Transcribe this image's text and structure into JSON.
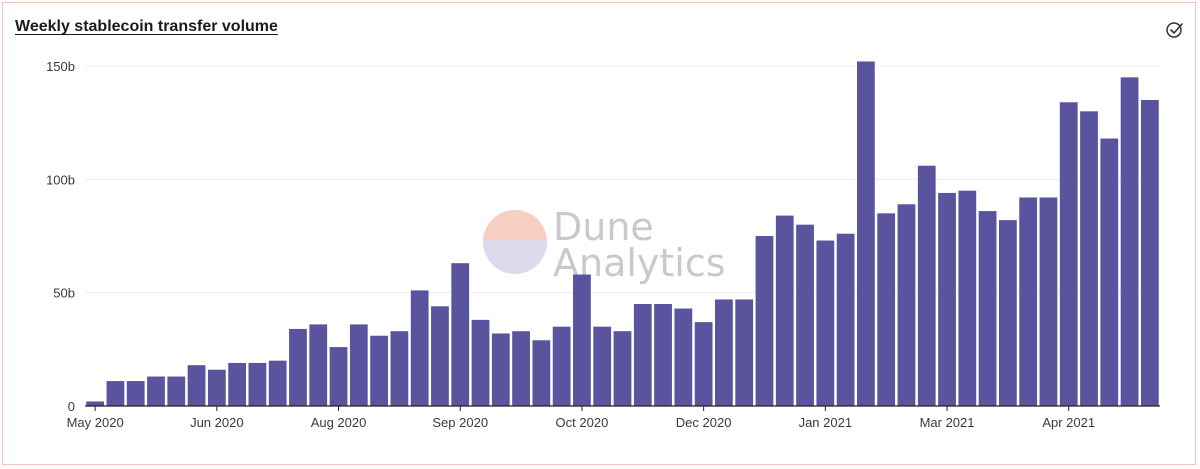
{
  "card": {
    "title": "Weekly stablecoin transfer volume"
  },
  "icons": {
    "status": "check-circle-icon"
  },
  "watermark": {
    "line1": "Dune",
    "line2": "Analytics"
  },
  "colors": {
    "bar": "#5a549e",
    "border": "#f2c4b8",
    "grid": "#ececec",
    "axis": "#222222",
    "watermark_top": "#f7cfc2",
    "watermark_bottom": "#dcdaec"
  },
  "chart_data": {
    "type": "bar",
    "title": "Weekly stablecoin transfer volume",
    "xlabel": "",
    "ylabel": "",
    "ylim": [
      0,
      150
    ],
    "y_ticks": [
      {
        "value": 0,
        "label": "0"
      },
      {
        "value": 50,
        "label": "50b"
      },
      {
        "value": 100,
        "label": "100b"
      },
      {
        "value": 150,
        "label": "150b"
      }
    ],
    "x_ticks": [
      {
        "index": 0,
        "label": "May 2020"
      },
      {
        "index": 6,
        "label": "Jun 2020"
      },
      {
        "index": 12,
        "label": "Aug 2020"
      },
      {
        "index": 18,
        "label": "Sep 2020"
      },
      {
        "index": 24,
        "label": "Oct 2020"
      },
      {
        "index": 30,
        "label": "Dec 2020"
      },
      {
        "index": 36,
        "label": "Jan 2021"
      },
      {
        "index": 42,
        "label": "Mar 2021"
      },
      {
        "index": 48,
        "label": "Apr 2021"
      }
    ],
    "grid": true,
    "series": [
      {
        "values": [
          2,
          11,
          11,
          13,
          13,
          18,
          16,
          19,
          19,
          20,
          34,
          36,
          26,
          36,
          31,
          33,
          51,
          44,
          63,
          38,
          32,
          33,
          29,
          35,
          58,
          35,
          33,
          45,
          45,
          43,
          37,
          47,
          47,
          75,
          84,
          80,
          73,
          76,
          152,
          85,
          89,
          106,
          94,
          95,
          86,
          82,
          92,
          92,
          134,
          130,
          118,
          145,
          135
        ]
      }
    ]
  }
}
